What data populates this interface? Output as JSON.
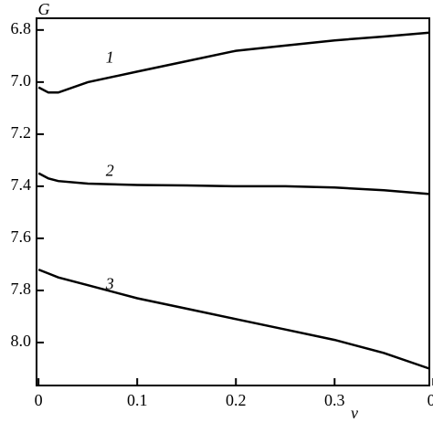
{
  "chart_data": {
    "type": "line",
    "y_label": "G",
    "x_label": "ν",
    "x": [
      0,
      0.01,
      0.02,
      0.05,
      0.1,
      0.15,
      0.2,
      0.25,
      0.3,
      0.35,
      0.396
    ],
    "series": [
      {
        "name": "1",
        "color": "#000000",
        "values": [
          7.02,
          7.04,
          7.04,
          7.0,
          6.96,
          6.92,
          6.88,
          6.86,
          6.84,
          6.825,
          6.81
        ]
      },
      {
        "name": "2",
        "color": "#000000",
        "values": [
          7.35,
          7.37,
          7.38,
          7.39,
          7.395,
          7.397,
          7.4,
          7.4,
          7.405,
          7.415,
          7.43
        ]
      },
      {
        "name": "3",
        "color": "#000000",
        "values": [
          7.72,
          7.735,
          7.75,
          7.78,
          7.83,
          7.87,
          7.91,
          7.95,
          7.99,
          8.04,
          8.1
        ]
      }
    ],
    "xlim": [
      -0.002,
      0.396
    ],
    "xticks": [
      0,
      0.1,
      0.2,
      0.3,
      {
        "value": 0.4,
        "label": "0."
      }
    ],
    "ylim": [
      6.755,
      8.165
    ],
    "y_inverted": true,
    "yticks": [
      6.8,
      {
        "value": 7.0,
        "label": "7.0"
      },
      7.2,
      7.4,
      7.6,
      7.8,
      {
        "value": 8.0,
        "label": "8.0"
      }
    ]
  }
}
